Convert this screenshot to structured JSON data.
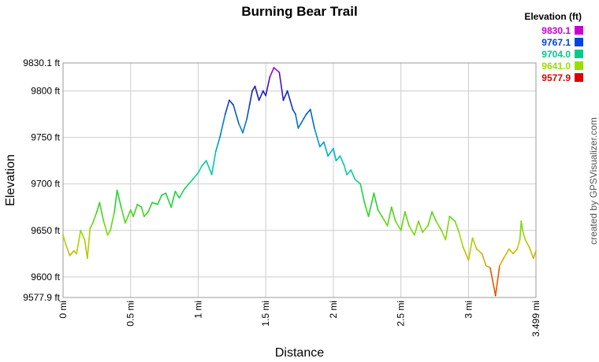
{
  "chart_data": {
    "type": "line",
    "title": "Burning Bear Trail",
    "xlabel": "Distance",
    "ylabel": "Elevation",
    "xlim": [
      0,
      3.499
    ],
    "ylim": [
      9577.9,
      9830.1
    ],
    "grid": true,
    "x_ticks": [
      {
        "value": 0,
        "label": "0 mi"
      },
      {
        "value": 0.5,
        "label": "0.5 mi"
      },
      {
        "value": 1,
        "label": "1 mi"
      },
      {
        "value": 1.5,
        "label": "1.5 mi"
      },
      {
        "value": 2,
        "label": "2 mi"
      },
      {
        "value": 2.5,
        "label": "2.5 mi"
      },
      {
        "value": 3,
        "label": "3 mi"
      },
      {
        "value": 3.499,
        "label": "3.499 mi"
      }
    ],
    "y_ticks": [
      {
        "value": 9830.1,
        "label": "9830.1 ft"
      },
      {
        "value": 9800,
        "label": "9800 ft"
      },
      {
        "value": 9750,
        "label": "9750 ft"
      },
      {
        "value": 9700,
        "label": "9700 ft"
      },
      {
        "value": 9650,
        "label": "9650 ft"
      },
      {
        "value": 9600,
        "label": "9600 ft"
      },
      {
        "value": 9577.9,
        "label": "9577.9 ft"
      }
    ],
    "legend": {
      "title": "Elevation (ft)",
      "placement": "top-right",
      "entries": [
        {
          "label": "9830.1",
          "color": "#cc00cc"
        },
        {
          "label": "9767.1",
          "color": "#0044dd"
        },
        {
          "label": "9704.0",
          "color": "#00cc88"
        },
        {
          "label": "9641.0",
          "color": "#99dd00"
        },
        {
          "label": "9577.9",
          "color": "#dd0000"
        }
      ]
    },
    "credit": "created by GPSVisualizer.com",
    "series": [
      {
        "x": [
          0,
          0.02,
          0.05,
          0.08,
          0.1,
          0.13,
          0.16,
          0.18,
          0.2,
          0.22,
          0.25,
          0.27,
          0.3,
          0.33,
          0.35,
          0.38,
          0.4,
          0.43,
          0.46,
          0.5,
          0.52,
          0.55,
          0.58,
          0.6,
          0.63,
          0.66,
          0.7,
          0.73,
          0.76,
          0.8,
          0.83,
          0.86,
          0.9,
          0.93,
          0.96,
          1.0,
          1.03,
          1.06,
          1.1,
          1.13,
          1.16,
          1.2,
          1.23,
          1.26,
          1.3,
          1.33,
          1.36,
          1.38,
          1.4,
          1.42,
          1.45,
          1.48,
          1.5,
          1.53,
          1.56,
          1.6,
          1.63,
          1.66,
          1.7,
          1.72,
          1.74,
          1.76,
          1.78,
          1.8,
          1.83,
          1.86,
          1.9,
          1.93,
          1.96,
          2.0,
          2.02,
          2.05,
          2.08,
          2.1,
          2.13,
          2.16,
          2.2,
          2.23,
          2.26,
          2.3,
          2.33,
          2.36,
          2.4,
          2.43,
          2.46,
          2.5,
          2.53,
          2.56,
          2.6,
          2.63,
          2.66,
          2.7,
          2.73,
          2.76,
          2.8,
          2.83,
          2.86,
          2.9,
          2.93,
          2.96,
          3.0,
          3.03,
          3.06,
          3.1,
          3.13,
          3.16,
          3.2,
          3.23,
          3.26,
          3.3,
          3.33,
          3.36,
          3.38,
          3.39,
          3.4,
          3.42,
          3.45,
          3.48,
          3.499
        ],
        "y": [
          9645,
          9635,
          9623,
          9628,
          9625,
          9650,
          9640,
          9620,
          9652,
          9658,
          9670,
          9680,
          9660,
          9645,
          9650,
          9670,
          9693,
          9675,
          9658,
          9672,
          9665,
          9678,
          9675,
          9665,
          9670,
          9680,
          9678,
          9688,
          9690,
          9675,
          9692,
          9685,
          9695,
          9700,
          9705,
          9712,
          9720,
          9725,
          9710,
          9735,
          9750,
          9775,
          9790,
          9785,
          9765,
          9755,
          9770,
          9785,
          9800,
          9805,
          9790,
          9800,
          9795,
          9815,
          9825,
          9820,
          9790,
          9800,
          9780,
          9775,
          9760,
          9765,
          9770,
          9775,
          9780,
          9760,
          9740,
          9745,
          9730,
          9738,
          9725,
          9730,
          9720,
          9710,
          9715,
          9705,
          9700,
          9680,
          9665,
          9690,
          9672,
          9665,
          9655,
          9675,
          9660,
          9650,
          9670,
          9655,
          9645,
          9660,
          9648,
          9655,
          9670,
          9660,
          9650,
          9640,
          9665,
          9660,
          9648,
          9632,
          9618,
          9642,
          9630,
          9625,
          9612,
          9610,
          9580,
          9612,
          9620,
          9630,
          9625,
          9630,
          9640,
          9660,
          9650,
          9640,
          9632,
          9620,
          9628
        ]
      }
    ]
  }
}
